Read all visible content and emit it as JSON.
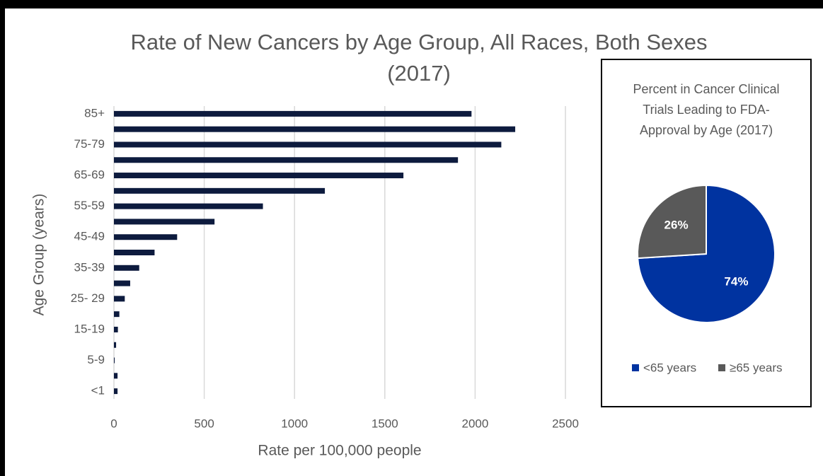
{
  "chart_data": [
    {
      "type": "bar",
      "orientation": "horizontal",
      "title": "Rate of New Cancers by Age Group, All Races, Both Sexes (2017)",
      "x_label": "Rate per 100,000 people",
      "y_label": "Age Group (years)",
      "categories": [
        "<1",
        null,
        "5-9",
        null,
        "15-19",
        null,
        "25- 29",
        null,
        "35-39",
        null,
        "45-49",
        null,
        "55-59",
        null,
        "65-69",
        null,
        "75-79",
        null,
        "85+"
      ],
      "values": [
        20,
        20,
        4,
        12,
        22,
        30,
        60,
        90,
        140,
        225,
        350,
        557,
        825,
        1168,
        1603,
        1905,
        2145,
        2222,
        1980
      ],
      "color": "#0d1b3e",
      "xlim": [
        0,
        2500
      ],
      "xticks": [
        0,
        500,
        1000,
        1500,
        2000,
        2500
      ],
      "grid": true
    },
    {
      "type": "pie",
      "title": "Percent in Cancer Clinical Trials Leading to FDA-Approval by Age (2017)",
      "categories": [
        "<65 years",
        "≥65 years"
      ],
      "values": [
        74,
        26
      ],
      "value_labels": [
        "74%",
        "26%"
      ],
      "colors": [
        "#0033a0",
        "#595959"
      ],
      "legend": "bottom"
    }
  ]
}
